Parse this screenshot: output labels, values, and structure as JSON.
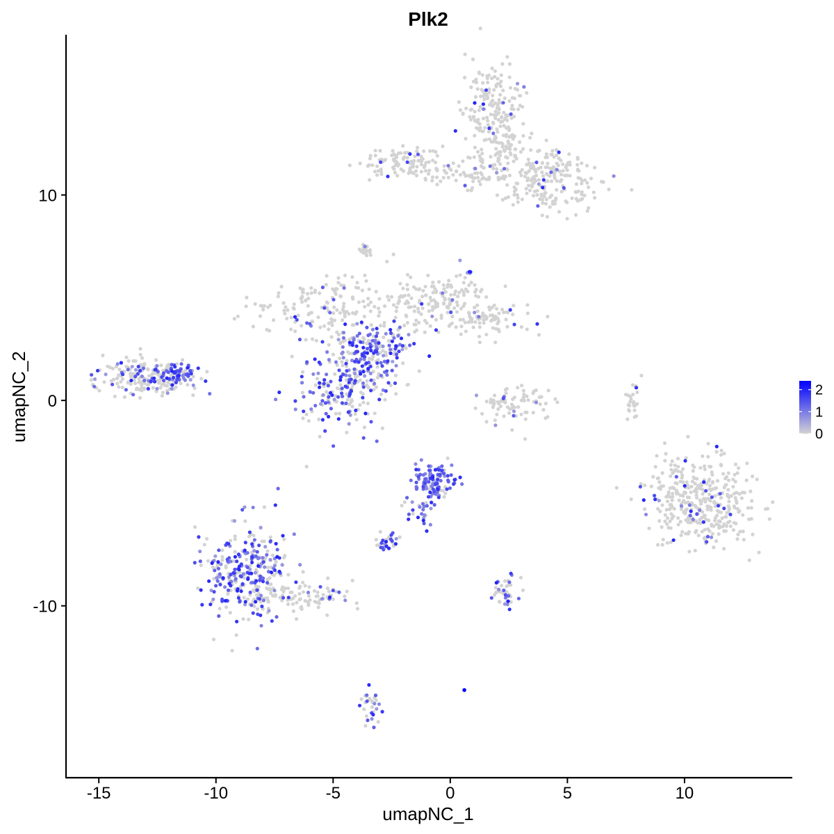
{
  "chart_data": {
    "type": "scatter",
    "title": "Plk2",
    "xlabel": "umapNC_1",
    "ylabel": "umapNC_2",
    "xlim": [
      -16.4,
      14.6
    ],
    "ylim": [
      -18.4,
      17.8
    ],
    "x_ticks": [
      -15,
      -10,
      -5,
      0,
      5,
      10
    ],
    "x_tick_labels": [
      "-15",
      "-10",
      "-5",
      "0",
      "5",
      "10"
    ],
    "y_ticks": [
      -10,
      0,
      10
    ],
    "y_tick_labels": [
      "-10",
      "0",
      "10"
    ],
    "grid": false,
    "legend": {
      "placement": "right",
      "type": "colorbar",
      "range": [
        0,
        2.4
      ],
      "ticks": [
        0,
        1,
        2
      ],
      "tick_labels": [
        "0",
        "1",
        "2"
      ],
      "low_color": "#d3d3d3",
      "high_color": "#0000ff"
    },
    "colors": {
      "low": "#d3d3d3",
      "high": "#0000ff",
      "axis": "#000000"
    },
    "clusters": [
      {
        "name": "top-right arm",
        "cx": 1.9,
        "cy": 13.6,
        "sx": 0.7,
        "sy": 1.4,
        "n": 240,
        "expr": 0.05
      },
      {
        "name": "top-right tail",
        "cx": 4.1,
        "cy": 10.9,
        "sx": 1.3,
        "sy": 0.8,
        "n": 220,
        "expr": 0.06
      },
      {
        "name": "top-left bar",
        "cx": -1.9,
        "cy": 11.6,
        "sx": 1.0,
        "sy": 0.35,
        "n": 110,
        "expr": 0.04
      },
      {
        "name": "top bridge",
        "cx": 0.6,
        "cy": 11.0,
        "sx": 0.9,
        "sy": 0.25,
        "n": 45,
        "expr": 0.03
      },
      {
        "name": "center hub",
        "cx": -3.4,
        "cy": 2.6,
        "sx": 0.9,
        "sy": 0.8,
        "n": 200,
        "expr": 0.55
      },
      {
        "name": "center left lobe",
        "cx": -5.6,
        "cy": 4.5,
        "sx": 1.4,
        "sy": 0.7,
        "n": 140,
        "expr": 0.12
      },
      {
        "name": "center lower lobe",
        "cx": -4.5,
        "cy": 0.5,
        "sx": 1.0,
        "sy": 0.9,
        "n": 200,
        "expr": 0.5
      },
      {
        "name": "center right lobe",
        "cx": -0.6,
        "cy": 4.9,
        "sx": 1.2,
        "sy": 0.7,
        "n": 160,
        "expr": 0.08
      },
      {
        "name": "center far right",
        "cx": 1.6,
        "cy": 4.0,
        "sx": 0.9,
        "sy": 0.5,
        "n": 80,
        "expr": 0.06
      },
      {
        "name": "left cluster",
        "cx": -13.0,
        "cy": 1.2,
        "sx": 1.0,
        "sy": 0.45,
        "n": 200,
        "expr": 0.25
      },
      {
        "name": "left cluster tip",
        "cx": -11.6,
        "cy": 1.3,
        "sx": 0.4,
        "sy": 0.25,
        "n": 50,
        "expr": 1.2
      },
      {
        "name": "small ring",
        "cx": 2.7,
        "cy": -0.2,
        "sx": 0.8,
        "sy": 0.5,
        "n": 80,
        "expr": 0.08
      },
      {
        "name": "right cluster",
        "cx": 10.6,
        "cy": -4.9,
        "sx": 1.1,
        "sy": 1.1,
        "n": 380,
        "expr": 0.07
      },
      {
        "name": "bottom-left cluster",
        "cx": -8.6,
        "cy": -8.4,
        "sx": 0.9,
        "sy": 1.1,
        "n": 320,
        "expr": 0.55
      },
      {
        "name": "bottom-left tail",
        "cx": -6.2,
        "cy": -9.6,
        "sx": 1.0,
        "sy": 0.35,
        "n": 80,
        "expr": 0.15
      },
      {
        "name": "mid-bottom cluster",
        "cx": -0.6,
        "cy": -4.0,
        "sx": 0.45,
        "sy": 0.45,
        "n": 110,
        "expr": 0.85
      },
      {
        "name": "mid-bottom spur",
        "cx": -1.3,
        "cy": -5.4,
        "sx": 0.35,
        "sy": 0.45,
        "n": 25,
        "expr": 0.7
      },
      {
        "name": "small bottom cluster",
        "cx": 2.4,
        "cy": -9.3,
        "sx": 0.35,
        "sy": 0.35,
        "n": 40,
        "expr": 0.45
      },
      {
        "name": "small tiny cluster",
        "cx": -2.7,
        "cy": -6.9,
        "sx": 0.3,
        "sy": 0.2,
        "n": 30,
        "expr": 0.35
      },
      {
        "name": "bottom stalk",
        "cx": -3.4,
        "cy": -15.0,
        "sx": 0.25,
        "sy": 0.45,
        "n": 30,
        "expr": 0.4
      },
      {
        "name": "upper small patch",
        "cx": -3.6,
        "cy": 7.3,
        "sx": 0.15,
        "sy": 0.15,
        "n": 20,
        "expr": 0.02
      },
      {
        "name": "right streak",
        "cx": 7.8,
        "cy": 0.2,
        "sx": 0.15,
        "sy": 0.55,
        "n": 25,
        "expr": 0.02
      }
    ],
    "highlight_point": {
      "x": 0.6,
      "y": -14.1,
      "value": 2.4
    }
  }
}
